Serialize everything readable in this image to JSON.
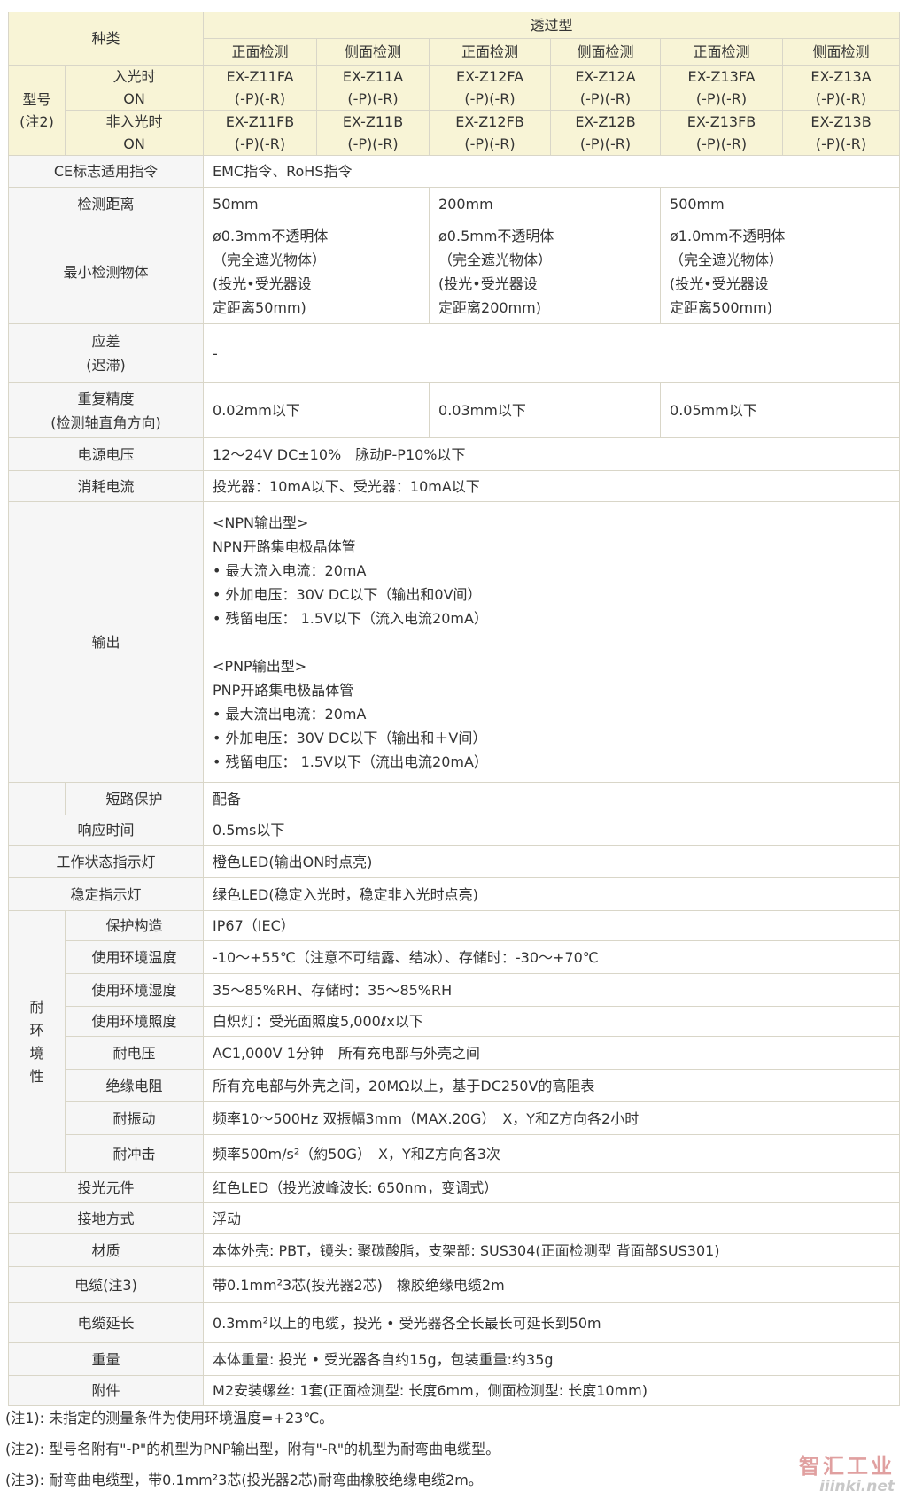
{
  "header": {
    "kind_label": "种类",
    "type_label": "透过型",
    "directions": [
      "正面检测",
      "侧面检测",
      "正面检测",
      "侧面检测",
      "正面检测",
      "侧面检测"
    ],
    "model_label": "型号\n(注2)",
    "light_on_label": "入光时\nON",
    "light_off_label": "非入光时\nON",
    "models_on": [
      "EX-Z11FA\n(-P)(-R)",
      "EX-Z11A\n(-P)(-R)",
      "EX-Z12FA\n(-P)(-R)",
      "EX-Z12A\n(-P)(-R)",
      "EX-Z13FA\n(-P)(-R)",
      "EX-Z13A\n(-P)(-R)"
    ],
    "models_off": [
      "EX-Z11FB\n(-P)(-R)",
      "EX-Z11B\n(-P)(-R)",
      "EX-Z12FB\n(-P)(-R)",
      "EX-Z12B\n(-P)(-R)",
      "EX-Z13FB\n(-P)(-R)",
      "EX-Z13B\n(-P)(-R)"
    ]
  },
  "env_group_label": "耐\n环\n境\n性",
  "rows": [
    {
      "label": "CE标志适用指令",
      "values": [
        "EMC指令、RoHS指令"
      ]
    },
    {
      "label": "检测距离",
      "values": [
        "50mm",
        "200mm",
        "500mm"
      ]
    },
    {
      "label": "最小检测物体",
      "values": [
        "ø0.3mm不透明体\n（完全遮光物体）\n(投光•受光器设\n定距离50mm)",
        "ø0.5mm不透明体\n（完全遮光物体）\n(投光•受光器设\n定距离200mm)",
        "ø1.0mm不透明体\n（完全遮光物体）\n(投光•受光器设\n定距离500mm)"
      ]
    },
    {
      "label": "应差\n(迟滞)",
      "values": [
        "-"
      ]
    },
    {
      "label": "重复精度\n(检测轴直角方向)",
      "values": [
        "0.02mm以下",
        "0.03mm以下",
        "0.05mm以下"
      ]
    },
    {
      "label": "电源电压",
      "values": [
        "12～24V DC±10%　脉动P-P10%以下"
      ]
    },
    {
      "label": "消耗电流",
      "values": [
        "投光器：10mA以下、受光器：10mA以下"
      ]
    },
    {
      "label": "输出",
      "values": [
        "<NPN输出型>\nNPN开路集电极晶体管\n• 最大流入电流：20mA\n• 外加电压：30V DC以下（输出和0V间）\n• 残留电压： 1.5V以下（流入电流20mA）\n\n<PNP输出型>\nPNP开路集电极晶体管\n• 最大流出电流：20mA\n• 外加电压：30V DC以下（输出和＋V间）\n• 残留电压： 1.5V以下（流出电流20mA）"
      ]
    },
    {
      "label": "短路保护",
      "sub": true,
      "values": [
        "配备"
      ]
    },
    {
      "label": "响应时间",
      "values": [
        "0.5ms以下"
      ]
    },
    {
      "label": "工作状态指示灯",
      "values": [
        "橙色LED(输出ON时点亮)"
      ]
    },
    {
      "label": "稳定指示灯",
      "values": [
        "绿色LED(稳定入光时，稳定非入光时点亮)"
      ]
    },
    {
      "label": "保护构造",
      "env": true,
      "values": [
        "IP67（IEC）"
      ]
    },
    {
      "label": "使用环境温度",
      "env": true,
      "values": [
        "-10～+55℃（注意不可结露、结冰）、存储时：-30～+70℃"
      ]
    },
    {
      "label": "使用环境湿度",
      "env": true,
      "values": [
        "35～85%RH、存储时：35～85%RH"
      ]
    },
    {
      "label": "使用环境照度",
      "env": true,
      "values": [
        "白炽灯：受光面照度5,000ℓx以下"
      ]
    },
    {
      "label": "耐电压",
      "env": true,
      "values": [
        "AC1,000V 1分钟　所有充电部与外壳之间"
      ]
    },
    {
      "label": "绝缘电阻",
      "env": true,
      "values": [
        "所有充电部与外壳之间，20MΩ以上，基于DC250V的高阻表"
      ]
    },
    {
      "label": "耐振动",
      "env": true,
      "values": [
        "频率10～500Hz 双振幅3mm（MAX.20G）　X，Y和Z方向各2小时"
      ]
    },
    {
      "label": "耐冲击",
      "env": true,
      "values": [
        "频率500m/s²（約50G）　X，Y和Z方向各3次"
      ]
    },
    {
      "label": "投光元件",
      "values": [
        "红色LED（投光波峰波长: 650nm，变调式）"
      ]
    },
    {
      "label": "接地方式",
      "values": [
        "浮动"
      ]
    },
    {
      "label": "材质",
      "values": [
        "本体外壳: PBT，镜头: 聚碳酸脂，支架部: SUS304(正面检测型 背面部SUS301)"
      ]
    },
    {
      "label": "电缆(注3)",
      "values": [
        "带0.1mm²3芯(投光器2芯)　橡胶绝缘电缆2m"
      ]
    },
    {
      "label": "电缆延长",
      "values": [
        "0.3mm²以上的电缆，投光 • 受光器各全长最长可延长到50m"
      ]
    },
    {
      "label": "重量",
      "values": [
        "本体重量: 投光 • 受光器各自约15g，包装重量:约35g"
      ]
    },
    {
      "label": "附件",
      "values": [
        "M2安装螺丝: 1套(正面检测型: 长度6mm，侧面检测型: 长度10mm)"
      ]
    }
  ],
  "notes": [
    "(注1): 未指定的测量条件为使用环境温度=+23℃。",
    "(注2): 型号名附有\"-P\"的机型为PNP输出型，附有\"-R\"的机型为耐弯曲电缆型。",
    "(注3): 耐弯曲电缆型，带0.1mm²3芯(投光器2芯)耐弯曲橡胶绝缘电缆2m。"
  ],
  "watermark": {
    "name": "智汇工业",
    "site": "iiinki.net"
  }
}
